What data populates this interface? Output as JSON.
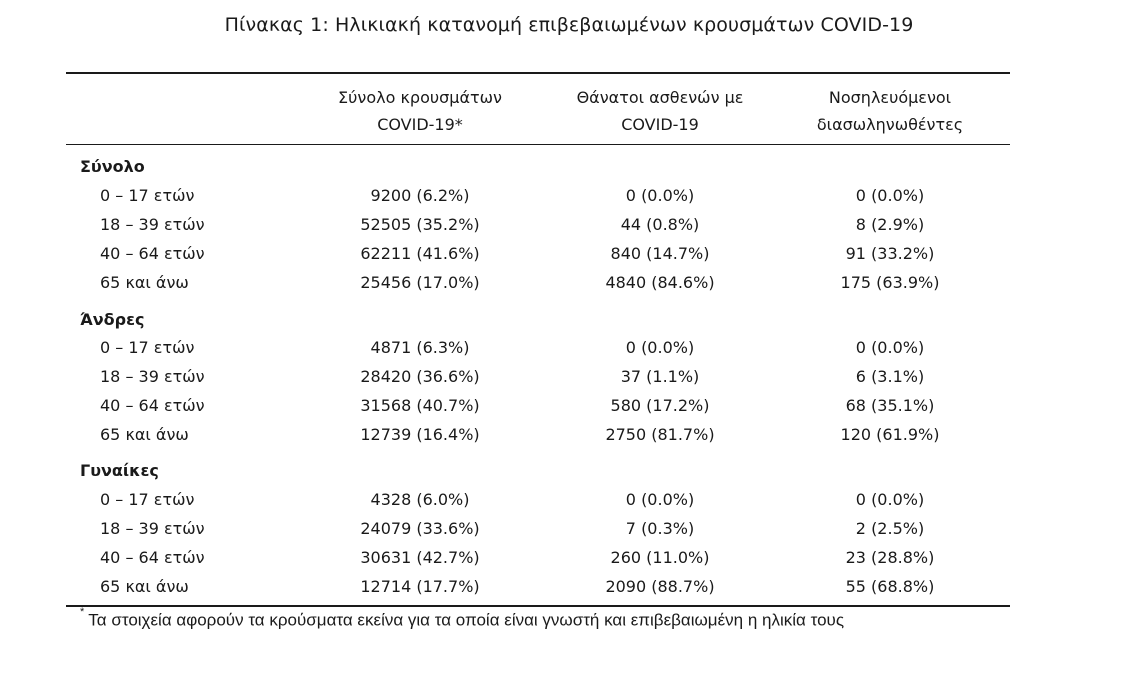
{
  "title": "Πίνακας 1: Ηλικιακή κατανομή επιβεβαιωμένων κρουσμάτων COVID-19",
  "columns": [
    {
      "line1": "Σύνολο κρουσμάτων",
      "line2": "COVID-19*"
    },
    {
      "line1": "Θάνατοι ασθενών με",
      "line2": "COVID-19"
    },
    {
      "line1": "Νοσηλευόμενοι",
      "line2": "διασωληνωθέντες"
    }
  ],
  "groups": [
    {
      "name": "Σύνολο",
      "rows": [
        {
          "label": "0 – 17 ετών",
          "c1": "9200 (6.2%)",
          "c2": "0 (0.0%)",
          "c3": "0 (0.0%)"
        },
        {
          "label": "18 – 39 ετών",
          "c1": "52505 (35.2%)",
          "c2": "44 (0.8%)",
          "c3": "8 (2.9%)"
        },
        {
          "label": "40 – 64 ετών",
          "c1": "62211 (41.6%)",
          "c2": "840 (14.7%)",
          "c3": "91 (33.2%)"
        },
        {
          "label": "65 και άνω",
          "c1": "25456 (17.0%)",
          "c2": "4840 (84.6%)",
          "c3": "175 (63.9%)"
        }
      ]
    },
    {
      "name": "Άνδρες",
      "rows": [
        {
          "label": "0 – 17 ετών",
          "c1": "4871 (6.3%)",
          "c2": "0 (0.0%)",
          "c3": "0 (0.0%)"
        },
        {
          "label": "18 – 39 ετών",
          "c1": "28420 (36.6%)",
          "c2": "37 (1.1%)",
          "c3": "6 (3.1%)"
        },
        {
          "label": "40 – 64 ετών",
          "c1": "31568 (40.7%)",
          "c2": "580 (17.2%)",
          "c3": "68 (35.1%)"
        },
        {
          "label": "65 και άνω",
          "c1": "12739 (16.4%)",
          "c2": "2750 (81.7%)",
          "c3": "120 (61.9%)"
        }
      ]
    },
    {
      "name": "Γυναίκες",
      "rows": [
        {
          "label": "0 – 17 ετών",
          "c1": "4328 (6.0%)",
          "c2": "0 (0.0%)",
          "c3": "0 (0.0%)"
        },
        {
          "label": "18 – 39 ετών",
          "c1": "24079 (33.6%)",
          "c2": "7 (0.3%)",
          "c3": "2 (2.5%)"
        },
        {
          "label": "40 – 64 ετών",
          "c1": "30631 (42.7%)",
          "c2": "260 (11.0%)",
          "c3": "23 (28.8%)"
        },
        {
          "label": "65 και άνω",
          "c1": "12714 (17.7%)",
          "c2": "2090 (88.7%)",
          "c3": "55 (68.8%)"
        }
      ]
    }
  ],
  "footnote": {
    "marker": "*",
    "text": "Τα στοιχεία αφορούν τα κρούσματα εκείνα για τα οποία είναι γνωστή και επιβεβαιωμένη η ηλικία τους"
  }
}
